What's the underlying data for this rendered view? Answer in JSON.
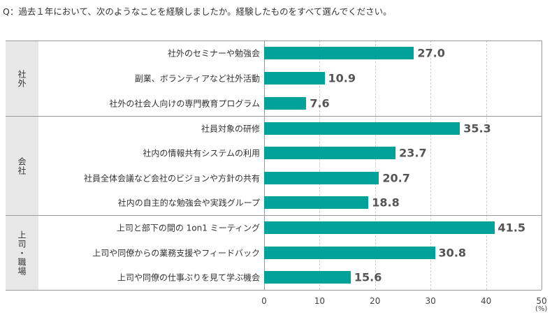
{
  "question": "Q：過去１年において、次のようなことを経験しましたか。経験したものをすべて選んでください。",
  "chart_data": {
    "type": "bar",
    "orientation": "horizontal",
    "title": "Q：過去１年において、次のようなことを経験しましたか。経験したものをすべて選んでください。",
    "groups": [
      {
        "name": "社外",
        "items": [
          {
            "label": "社外のセミナーや勉強会",
            "value": 27.0
          },
          {
            "label": "副業、ボランティアなど社外活動",
            "value": 10.9
          },
          {
            "label": "社外の社会人向けの専門教育プログラム",
            "value": 7.6
          }
        ]
      },
      {
        "name": "会社",
        "items": [
          {
            "label": "社員対象の研修",
            "value": 35.3
          },
          {
            "label": "社内の情報共有システムの利用",
            "value": 23.7
          },
          {
            "label": "社員全体会議など会社のビジョンや方針の共有",
            "value": 20.7
          },
          {
            "label": "社内の自主的な勉強会や実践グループ",
            "value": 18.8
          }
        ]
      },
      {
        "name": "上司・職場",
        "items": [
          {
            "label": "上司と部下の間の 1on1 ミーティング",
            "value": 41.5
          },
          {
            "label": "上司や同僚からの業務支援やフィードバック",
            "value": 30.8
          },
          {
            "label": "上司や同僚の仕事ぶりを見て学ぶ機会",
            "value": 15.6
          }
        ]
      }
    ],
    "xlim": [
      0,
      50
    ],
    "xticks": [
      "0",
      "10",
      "20",
      "30",
      "40",
      "50"
    ],
    "xunit": "(%)",
    "grid": true,
    "color": "#00a29a"
  }
}
